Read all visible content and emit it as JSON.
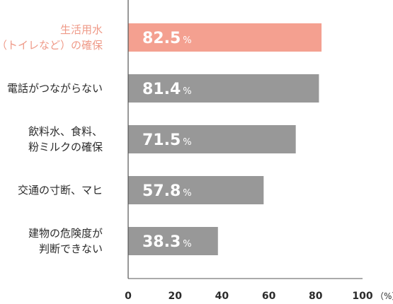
{
  "chart_data": {
    "type": "bar",
    "orientation": "horizontal",
    "categories": [
      [
        "生活用水",
        "（トイレなど）の確保"
      ],
      [
        "電話がつながらない"
      ],
      [
        "飲料水、食料、",
        "粉ミルクの確保"
      ],
      [
        "交通の寸断、マヒ"
      ],
      [
        "建物の危険度が",
        "判断できない"
      ]
    ],
    "values": [
      82.5,
      81.4,
      71.5,
      57.8,
      38.3
    ],
    "value_labels": [
      "82.5",
      "81.4",
      "71.5",
      "57.8",
      "38.3"
    ],
    "value_unit": "%",
    "highlight_index": 0,
    "xlim": [
      0,
      100
    ],
    "xticks": [
      "0",
      "20",
      "40",
      "60",
      "80",
      "100"
    ],
    "x_unit_label": "（%）",
    "grid": false,
    "colors": {
      "highlight": "#f4a090",
      "bar": "#989898",
      "label_text": "#2b2b2b",
      "highlight_label_text": "#ef9a88",
      "axis": "#555555",
      "value_text": "#ffffff"
    }
  }
}
